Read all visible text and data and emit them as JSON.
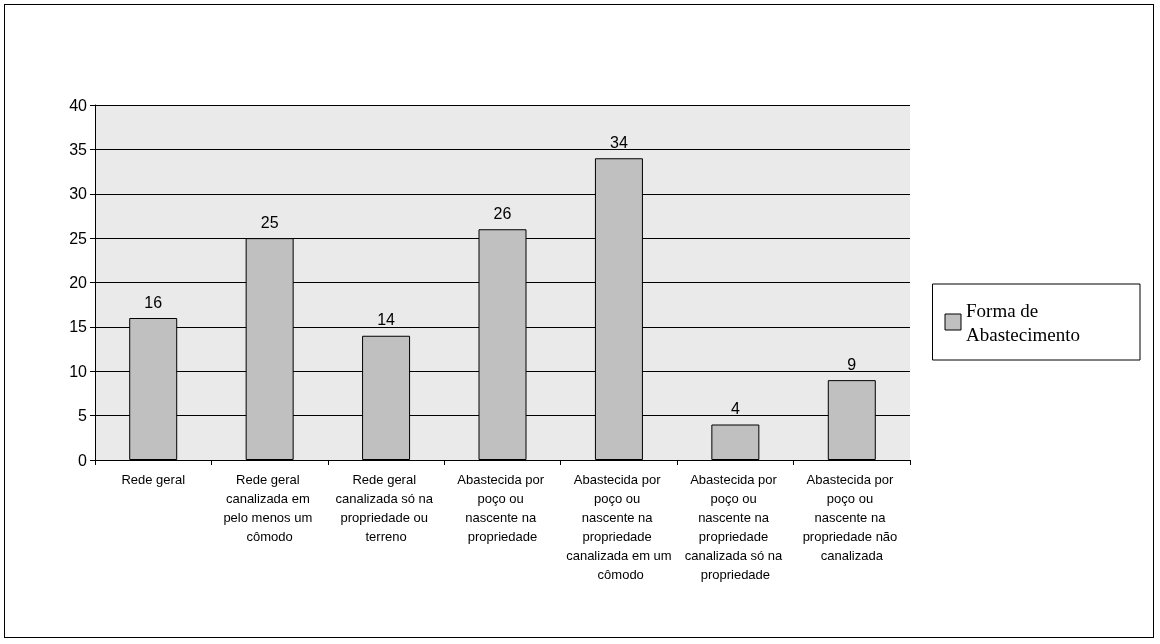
{
  "chart_data": {
    "type": "bar",
    "categories": [
      "Rede geral",
      "Rede geral canalizada em pelo menos um cômodo",
      "Rede geral canalizada só na propriedade ou terreno",
      "Abastecida por poço ou nascente na propriedade",
      "Abastecida por poço ou nascente na propriedade canalizada em um cômodo",
      "Abastecida por poço ou nascente na propriedade canalizada só na propriedade",
      "Abastecida por poço ou nascente na propriedade não canalizada"
    ],
    "series": [
      {
        "name": "Forma de Abastecimento",
        "color": "#c0c0c0",
        "values": [
          16,
          25,
          14,
          26,
          34,
          4,
          9
        ]
      }
    ],
    "ylim": [
      0,
      40
    ],
    "yticks": [
      0,
      5,
      10,
      15,
      20,
      25,
      30,
      35,
      40
    ],
    "grid": "y",
    "legend": "right",
    "data_labels": true
  }
}
